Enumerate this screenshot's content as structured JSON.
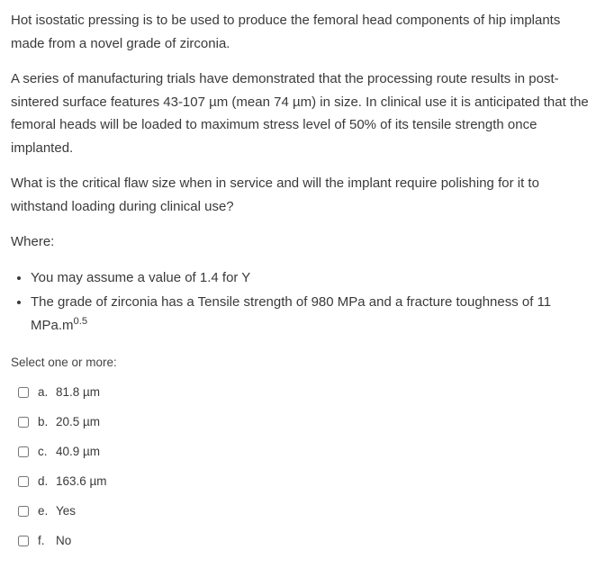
{
  "colors": {
    "text": "#3a3a3a",
    "background": "#ffffff"
  },
  "paragraphs": {
    "p1": "Hot isostatic pressing is to be used to produce the femoral head components of hip implants made from a novel grade of zirconia.",
    "p2": "A series of manufacturing trials have demonstrated that the processing route results in post-sintered surface features 43-107 µm (mean 74 µm) in size.  In clinical use it is anticipated that the femoral heads will be loaded to maximum stress level of 50% of its tensile strength once implanted.",
    "p3": "What is the critical flaw size when in service and will the implant require polishing for it to withstand loading during clinical use?",
    "p4": "Where:"
  },
  "bullets": {
    "b1": "You may assume a value of 1.4 for Y",
    "b2_pre": "The grade of zirconia has a Tensile strength of 980 MPa and a fracture toughness of 11 MPa.m",
    "b2_sup": "0.5"
  },
  "select_prompt": "Select one or more:",
  "options": [
    {
      "letter": "a.",
      "label": "81.8 µm"
    },
    {
      "letter": "b.",
      "label": "20.5 µm"
    },
    {
      "letter": "c.",
      "label": "40.9 µm"
    },
    {
      "letter": "d.",
      "label": "163.6 µm"
    },
    {
      "letter": "e.",
      "label": "Yes"
    },
    {
      "letter": "f.",
      "label": "No"
    }
  ]
}
